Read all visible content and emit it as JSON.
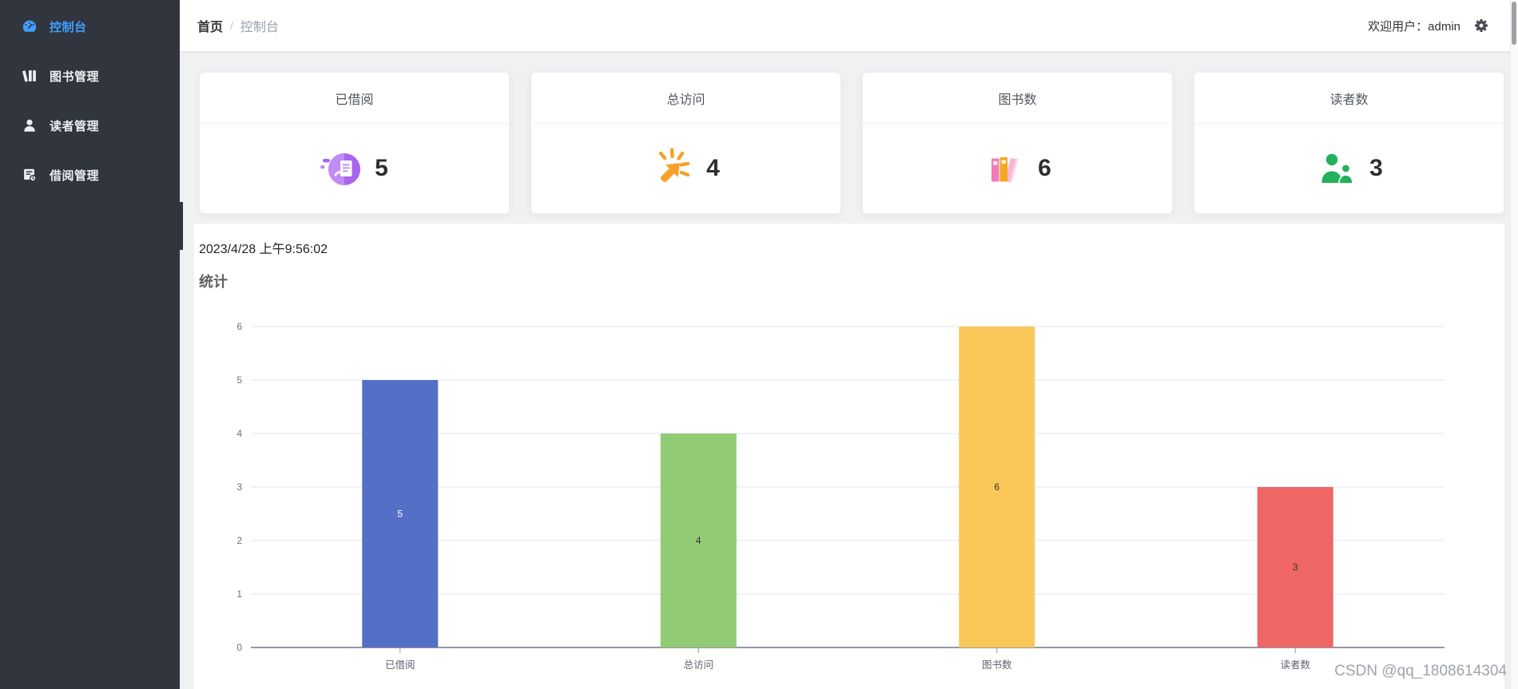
{
  "sidebar": {
    "items": [
      {
        "label": "控制台",
        "active": true
      },
      {
        "label": "图书管理",
        "active": false
      },
      {
        "label": "读者管理",
        "active": false
      },
      {
        "label": "借阅管理",
        "active": false
      }
    ]
  },
  "header": {
    "breadcrumb": {
      "home": "首页",
      "separator": "/",
      "current": "控制台"
    },
    "welcome_text": "欢迎用户：admin"
  },
  "stats_cards": [
    {
      "title": "已借阅",
      "value": "5",
      "icon": "borrowed-document-icon",
      "accent": "#a964f0"
    },
    {
      "title": "总访问",
      "value": "4",
      "icon": "click-cursor-icon",
      "accent": "#f7a028"
    },
    {
      "title": "图书数",
      "value": "6",
      "icon": "books-stack-icon",
      "accent": "#f27bb8"
    },
    {
      "title": "读者数",
      "value": "3",
      "icon": "readers-icon",
      "accent": "#24b15b"
    }
  ],
  "timestamp": "2023/4/28 上午9:56:02",
  "section_title": "统计",
  "chart_data": {
    "type": "bar",
    "title": "统计",
    "categories": [
      "已借阅",
      "总访问",
      "图书数",
      "读者数"
    ],
    "values": [
      5,
      4,
      6,
      3
    ],
    "bar_colors": [
      "#5470c6",
      "#91cc75",
      "#fac858",
      "#ee6666"
    ],
    "value_label_colors": [
      "#ffffff",
      "#333333",
      "#333333",
      "#333333"
    ],
    "value_label_position": "inside-middle",
    "xlabel": "",
    "ylabel": "",
    "ylim": [
      0,
      6
    ],
    "yticks": [
      0,
      1,
      2,
      3,
      4,
      5,
      6
    ],
    "grid": true,
    "legend": "none",
    "grid_color": "#e0e6f1",
    "axis_color": "#9299a3",
    "tick_label_color": "#6e7079",
    "category_label_color": "#5e6470"
  },
  "watermark": "CSDN @qq_1808614304"
}
